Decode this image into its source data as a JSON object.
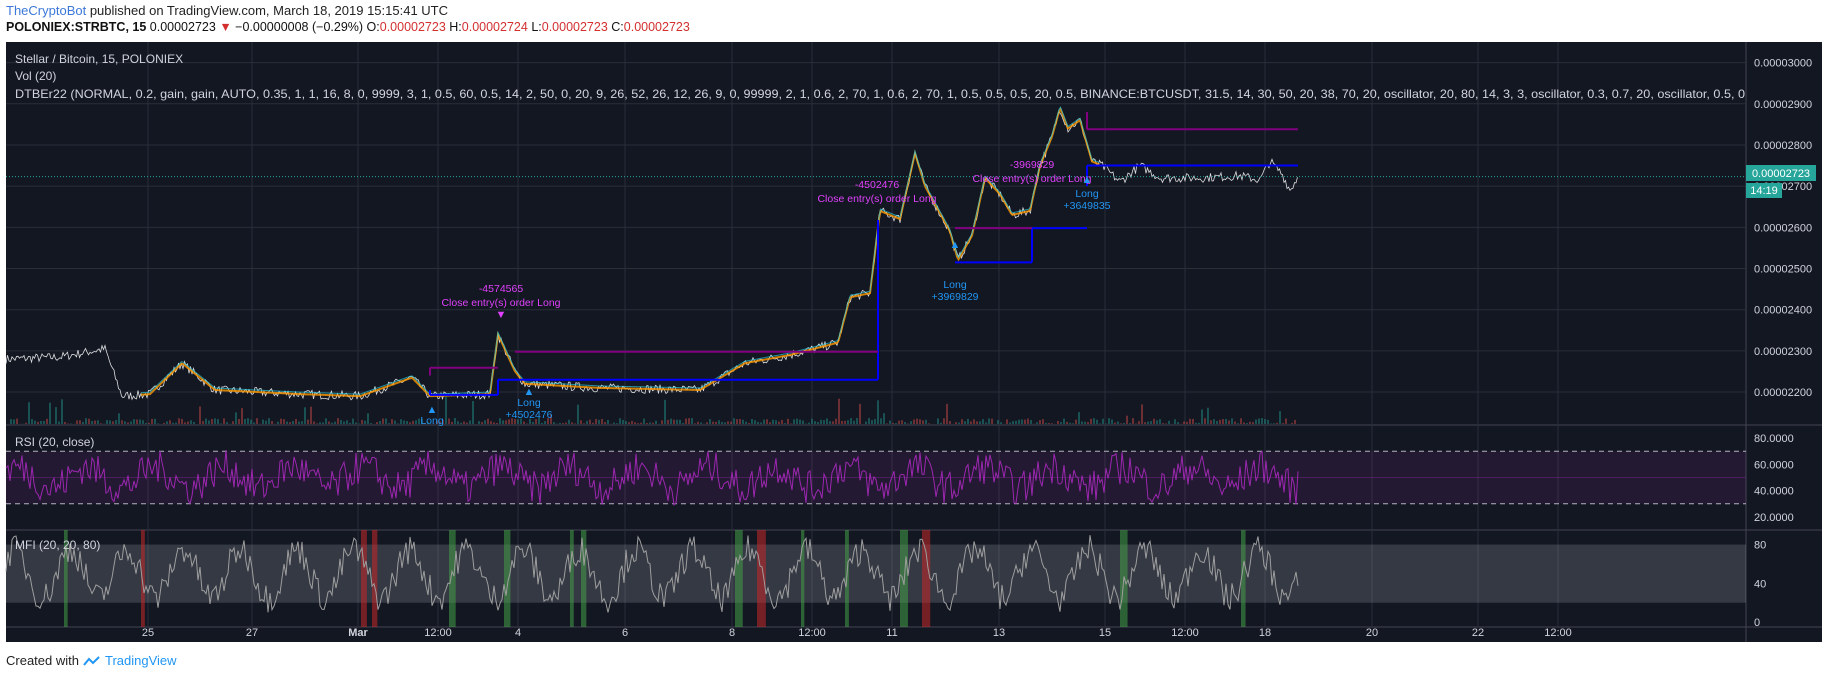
{
  "header": {
    "brand": "TheCryptoBot",
    "published_text": " published on TradingView.com, March 18, 2019 15:15:41 UTC",
    "symbol": "POLONIEX:STRBTC, 15",
    "last": "0.00002723",
    "change": "−0.00000008 (−0.29%)",
    "o_label": "O:",
    "o_value": "0.00002723",
    "h_label": "H:",
    "h_value": "0.00002724",
    "l_label": "L:",
    "l_value": "0.00002723",
    "c_label": "C:",
    "c_value": "0.00002723"
  },
  "legend": {
    "title": "Stellar / Bitcoin, 15, POLONIEX",
    "vol": "Vol (20)",
    "strategy": "DTBEr22 (NORMAL, 0.2,  gain,  gain, AUTO, 0.35, 1, 1, 16, 8, 0, 9999, 3, 1, 0.5, 60, 0.5, 14, 2, 50, 0, 20, 9, 26, 52, 26, 12, 26, 9, 0, 99999, 2, 1, 0.6, 2, 70, 1, 0.6, 2, 70, 1, 0.5, 0.5, 0.5, 20, 0.5, BINANCE:BTCUSDT, 31.5, 14, 30, 50, 20, 38, 70, 20, oscillator, 20, 80, 14, 3, 3, oscillator, 0.3, 0.7, 20, oscillator, 0.5, 0"
  },
  "price_axis": {
    "ticks": [
      "0.00003000",
      "0.00002900",
      "0.00002800",
      "0.00002700",
      "0.00002600",
      "0.00002500",
      "0.00002400",
      "0.00002300",
      "0.00002200"
    ],
    "current_price": "0.00002723",
    "countdown": "14:19"
  },
  "rsi": {
    "label": "RSI (20, close)",
    "ticks": [
      "80.0000",
      "60.0000",
      "40.0000",
      "20.0000"
    ],
    "upper": 70,
    "lower": 30
  },
  "mfi": {
    "label": "MFI (20, 20, 80)",
    "ticks": [
      "80",
      "40",
      "0"
    ],
    "upper": 80,
    "lower": 20
  },
  "time_axis": [
    "25",
    "27",
    "Mar",
    "12:00",
    "4",
    "6",
    "8",
    "12:00",
    "11",
    "13",
    "15",
    "12:00",
    "18",
    "20",
    "22",
    "12:00"
  ],
  "annotations": {
    "short1_value": "-4574565",
    "short1_text": "Close entry(s) order Long",
    "long1": "Long",
    "long2": "Long",
    "long2_value": "+4502476",
    "short2_value": "-4502476",
    "short2_text": "Close entry(s) order Long",
    "long3": "Long",
    "long3_value": "+3969829",
    "short3_value": "-3969829",
    "short3_text": "Close entry(s) order Long",
    "long4": "Long",
    "long4_value": "+3649835"
  },
  "footer": {
    "created_with": "Created with",
    "brand": "TradingView"
  },
  "colors": {
    "background": "#131722",
    "grid": "#2a2e39",
    "price_line": "#ffffff",
    "stop_line": "#0000ff",
    "target_line": "#800080",
    "rsi": "#9c27b0",
    "mfi": "#9e9e9e",
    "accent": "#26a69a",
    "signal": "#2196f3",
    "close_signal": "#e040fb"
  }
}
